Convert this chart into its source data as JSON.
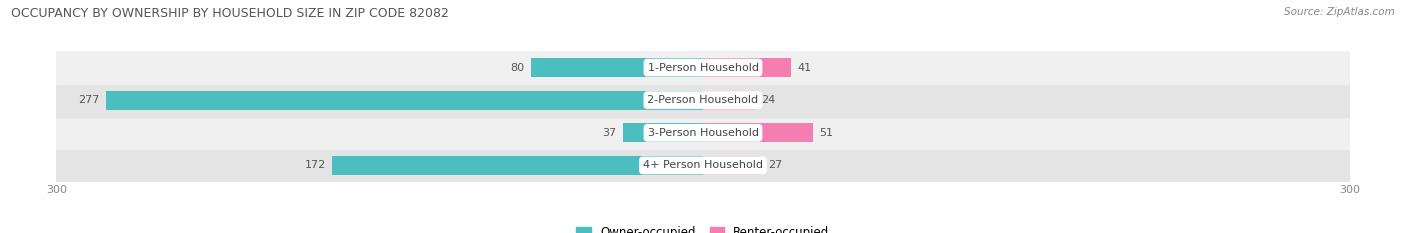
{
  "title": "OCCUPANCY BY OWNERSHIP BY HOUSEHOLD SIZE IN ZIP CODE 82082",
  "source": "Source: ZipAtlas.com",
  "categories": [
    "1-Person Household",
    "2-Person Household",
    "3-Person Household",
    "4+ Person Household"
  ],
  "owner_values": [
    80,
    277,
    37,
    172
  ],
  "renter_values": [
    41,
    24,
    51,
    27
  ],
  "owner_color": "#4BBFBF",
  "renter_color": "#F47EB0",
  "renter_color_light": "#F9BBD5",
  "row_bg_colors": [
    "#F0F0F0",
    "#E4E4E4",
    "#F0F0F0",
    "#E4E4E4"
  ],
  "axis_max": 300,
  "bar_height": 0.58,
  "label_fontsize": 8,
  "title_fontsize": 9,
  "source_fontsize": 7.5,
  "figsize": [
    14.06,
    2.33
  ],
  "dpi": 100
}
